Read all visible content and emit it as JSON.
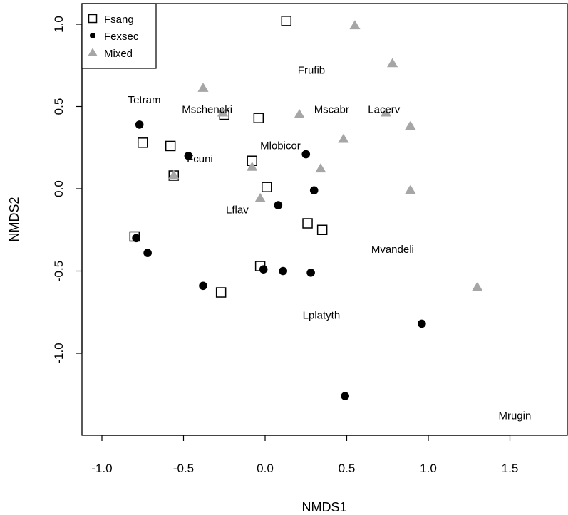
{
  "chart_data": {
    "type": "scatter",
    "xlabel": "NMDS1",
    "ylabel": "NMDS2",
    "xlim": [
      -1.1,
      1.85
    ],
    "ylim": [
      -1.5,
      1.12
    ],
    "x_ticks": [
      -1.0,
      -0.5,
      0.0,
      0.5,
      1.0,
      1.5
    ],
    "x_tick_labels": [
      "-1.0",
      "-0.5",
      "0.0",
      "0.5",
      "1.0",
      "1.5"
    ],
    "y_ticks": [
      -1.0,
      -0.5,
      0.0,
      0.5,
      1.0
    ],
    "y_tick_labels": [
      "-1.0",
      "-0.5",
      "0.0",
      "0.5",
      "1.0"
    ],
    "grid": false,
    "legend_position": "top-left",
    "series": [
      {
        "name": "Fsang",
        "marker": "open-square",
        "color": "#000000",
        "points": [
          {
            "x": 0.13,
            "y": 1.02
          },
          {
            "x": -0.04,
            "y": 0.43
          },
          {
            "x": -0.25,
            "y": 0.45
          },
          {
            "x": -0.75,
            "y": 0.28
          },
          {
            "x": -0.58,
            "y": 0.26
          },
          {
            "x": -0.08,
            "y": 0.17
          },
          {
            "x": -0.56,
            "y": 0.08
          },
          {
            "x": 0.01,
            "y": 0.01
          },
          {
            "x": 0.26,
            "y": -0.21
          },
          {
            "x": 0.35,
            "y": -0.25
          },
          {
            "x": -0.8,
            "y": -0.29
          },
          {
            "x": -0.03,
            "y": -0.47
          },
          {
            "x": -0.27,
            "y": -0.63
          }
        ]
      },
      {
        "name": "Fexsec",
        "marker": "filled-circle",
        "color": "#000000",
        "points": [
          {
            "x": -0.77,
            "y": 0.39
          },
          {
            "x": -0.47,
            "y": 0.2
          },
          {
            "x": 0.25,
            "y": 0.21
          },
          {
            "x": 0.3,
            "y": -0.01
          },
          {
            "x": 0.08,
            "y": -0.1
          },
          {
            "x": -0.79,
            "y": -0.3
          },
          {
            "x": -0.72,
            "y": -0.39
          },
          {
            "x": -0.01,
            "y": -0.49
          },
          {
            "x": 0.11,
            "y": -0.5
          },
          {
            "x": 0.28,
            "y": -0.51
          },
          {
            "x": -0.38,
            "y": -0.59
          },
          {
            "x": 0.96,
            "y": -0.82
          },
          {
            "x": 0.49,
            "y": -1.26
          }
        ]
      },
      {
        "name": "Mixed",
        "marker": "filled-triangle",
        "color": "#a6a6a6",
        "points": [
          {
            "x": 0.55,
            "y": 0.99
          },
          {
            "x": 0.78,
            "y": 0.76
          },
          {
            "x": -0.38,
            "y": 0.61
          },
          {
            "x": -0.26,
            "y": 0.46
          },
          {
            "x": 0.21,
            "y": 0.45
          },
          {
            "x": 0.74,
            "y": 0.46
          },
          {
            "x": 0.89,
            "y": 0.38
          },
          {
            "x": 0.48,
            "y": 0.3
          },
          {
            "x": -0.08,
            "y": 0.13
          },
          {
            "x": 0.34,
            "y": 0.12
          },
          {
            "x": -0.56,
            "y": 0.08
          },
          {
            "x": -0.03,
            "y": -0.06
          },
          {
            "x": 0.89,
            "y": -0.01
          },
          {
            "x": 1.3,
            "y": -0.6
          }
        ]
      }
    ],
    "annotations": [
      {
        "text": "Frufib",
        "x": 0.2,
        "y": 0.7
      },
      {
        "text": "Tetram",
        "x": -0.84,
        "y": 0.52
      },
      {
        "text": "Mschencki",
        "x": -0.51,
        "y": 0.46
      },
      {
        "text": "Mscabr",
        "x": 0.3,
        "y": 0.46
      },
      {
        "text": "Lacerv",
        "x": 0.63,
        "y": 0.46
      },
      {
        "text": "Mlobicor",
        "x": -0.03,
        "y": 0.24
      },
      {
        "text": "Fcuni",
        "x": -0.48,
        "y": 0.16
      },
      {
        "text": "Lflav",
        "x": -0.24,
        "y": -0.15
      },
      {
        "text": "Mvandeli",
        "x": 0.65,
        "y": -0.39
      },
      {
        "text": "Lplatyth",
        "x": 0.23,
        "y": -0.79
      },
      {
        "text": "Mrugin",
        "x": 1.43,
        "y": -1.4
      }
    ]
  }
}
